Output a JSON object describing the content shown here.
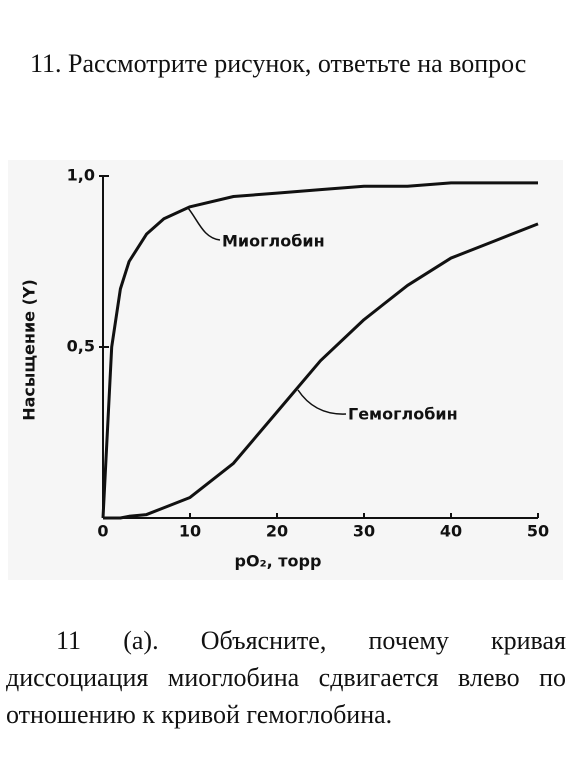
{
  "question": {
    "title": "11. Рассмотрите рисунок, ответьте на вопрос"
  },
  "chart_data": {
    "type": "line",
    "x_label": "pO₂, торр",
    "y_label": "Насыщение (Y)",
    "x": [
      0,
      1,
      2,
      3,
      5,
      7,
      10,
      15,
      20,
      25,
      30,
      35,
      40,
      45,
      50
    ],
    "series": [
      {
        "name": "Миоглобин",
        "color": "#111111",
        "values": [
          0,
          0.5,
          0.67,
          0.75,
          0.83,
          0.875,
          0.91,
          0.94,
          0.95,
          0.96,
          0.97,
          0.97,
          0.98,
          0.98,
          0.98
        ]
      },
      {
        "name": "Гемоглобин",
        "color": "#111111",
        "values": [
          0,
          0,
          0,
          0.005,
          0.01,
          0.03,
          0.06,
          0.16,
          0.31,
          0.46,
          0.58,
          0.68,
          0.76,
          0.81,
          0.86
        ]
      }
    ],
    "xlim": [
      0,
      50
    ],
    "xticks": [
      0,
      10,
      20,
      30,
      40,
      50
    ],
    "ylim": [
      0,
      1
    ],
    "yticks": [
      {
        "value": 0.5,
        "label": "0,5"
      },
      {
        "value": 1,
        "label": "1,0"
      }
    ],
    "grid": false
  },
  "answer": {
    "text": "11 (а). Объясните, почему кривая диссоциация миоглобина сдвигается влево по отношению к кривой гемоглобина."
  }
}
